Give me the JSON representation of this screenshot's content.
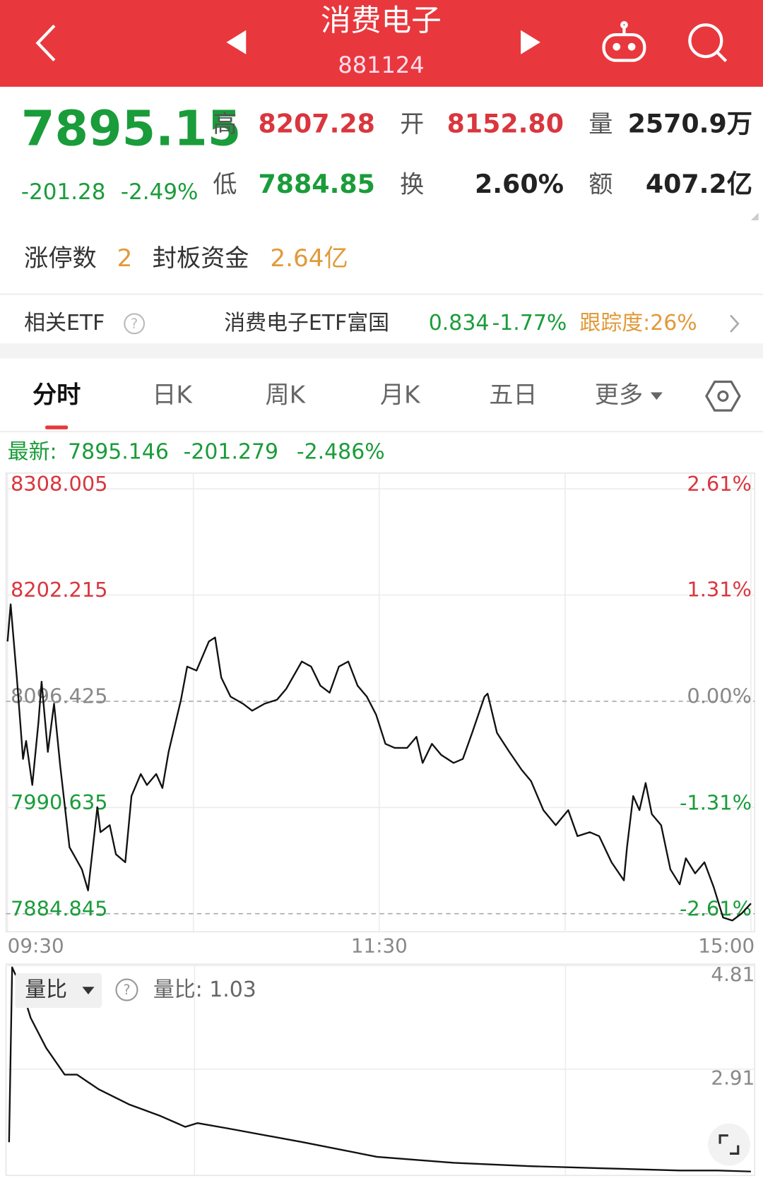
{
  "header": {
    "title": "消费电子",
    "code": "881124"
  },
  "quote": {
    "price": "7895.15",
    "change": "-201.28",
    "change_pct": "-2.49%",
    "stats": [
      {
        "label": "高",
        "value": "8207.28"
      },
      {
        "label": "开",
        "value": "8152.80"
      },
      {
        "label": "量",
        "value": "2570.9万"
      },
      {
        "label": "低",
        "value": "7884.85"
      },
      {
        "label": "换",
        "value": "2.60%"
      },
      {
        "label": "额",
        "value": "407.2亿"
      }
    ]
  },
  "limit_up": {
    "label": "涨停数",
    "count": "2",
    "fund_label": "封板资金",
    "fund": "2.64亿"
  },
  "etf": {
    "label": "相关ETF",
    "name": "消费电子ETF富国",
    "price": "0.834",
    "change": "-1.77%",
    "tracking": "跟踪度:26%"
  },
  "tabs": [
    "分时",
    "日K",
    "周K",
    "月K",
    "五日",
    "更多"
  ],
  "latest": {
    "label": "最新:",
    "price": "7895.146",
    "change": "-201.279",
    "change_pct": "-2.486%"
  },
  "chart_data": [
    {
      "type": "line",
      "color": "#111111",
      "up_color": "#d9363e",
      "down_color": "#1a9c3a",
      "flat_color": "#888888",
      "x": [
        0,
        1,
        3,
        5,
        6,
        8,
        10,
        11,
        13,
        15,
        17,
        20,
        22,
        24,
        26,
        29,
        30,
        33,
        35,
        38,
        40,
        43,
        45,
        48,
        50,
        52,
        56,
        58,
        61,
        65,
        67,
        69,
        72,
        76,
        79,
        83,
        87,
        90,
        95,
        98,
        101,
        104,
        107,
        110,
        113,
        116,
        119,
        122,
        125,
        129,
        132,
        134,
        137,
        140,
        144,
        147,
        150,
        154,
        155,
        158,
        162,
        166,
        169,
        173,
        177,
        181,
        184,
        188,
        191,
        195,
        199,
        200,
        202,
        204,
        206,
        208,
        211,
        214,
        217,
        219,
        222,
        225,
        228,
        231,
        234,
        237,
        240
      ],
      "values": [
        8156,
        8193,
        8120,
        8039,
        8057,
        8013,
        8076,
        8116,
        8046,
        8094,
        8032,
        7951,
        7940,
        7929,
        7908,
        7991,
        7966,
        7973,
        7944,
        7936,
        8002,
        8024,
        8013,
        8024,
        8010,
        8046,
        8098,
        8131,
        8127,
        8156,
        8160,
        8120,
        8101,
        8094,
        8087,
        8094,
        8098,
        8109,
        8136,
        8131,
        8112,
        8105,
        8131,
        8136,
        8112,
        8101,
        8083,
        8054,
        8050,
        8050,
        8061,
        8035,
        8054,
        8043,
        8035,
        8039,
        8065,
        8101,
        8104,
        8065,
        8046,
        8028,
        8017,
        7988,
        7973,
        7988,
        7962,
        7966,
        7962,
        7936,
        7918,
        7951,
        8002,
        7988,
        8015,
        7984,
        7973,
        7929,
        7914,
        7940,
        7925,
        7936,
        7911,
        7881,
        7878,
        7885,
        7895
      ],
      "xlim": [
        0,
        240
      ],
      "xticks": [
        {
          "value": 0,
          "label": "09:30"
        },
        {
          "value": 120,
          "label": "11:30"
        },
        {
          "value": 240,
          "label": "15:00"
        }
      ],
      "ylim": [
        7884.845,
        8308.005
      ],
      "yticks": [
        8308.005,
        8202.215,
        8096.425,
        7990.635,
        7884.845
      ],
      "y2lim": [
        -2.61,
        2.61
      ],
      "y2ticks": [
        {
          "value": 2.61,
          "label": "2.61%"
        },
        {
          "value": 1.31,
          "label": "1.31%"
        },
        {
          "value": 0,
          "label": "0.00%"
        },
        {
          "value": -1.31,
          "label": "-1.31%"
        },
        {
          "value": -2.61,
          "label": "-2.61%"
        }
      ],
      "grid": true
    },
    {
      "type": "line",
      "title": "量比",
      "annotation": "量比: 1.03",
      "color": "#111111",
      "x": [
        0,
        1,
        4,
        7,
        12,
        18,
        22,
        29,
        39,
        49,
        57,
        61,
        71,
        95,
        119,
        144,
        168,
        192,
        217,
        229,
        240
      ],
      "values": [
        1.57,
        4.78,
        4.4,
        3.85,
        3.3,
        2.81,
        2.81,
        2.54,
        2.26,
        2.05,
        1.85,
        1.92,
        1.82,
        1.57,
        1.3,
        1.19,
        1.13,
        1.09,
        1.05,
        1.05,
        1.03
      ],
      "xlim": [
        0,
        240
      ],
      "ylim": [
        1.0,
        4.81
      ],
      "yticks": [
        4.81,
        2.91
      ],
      "grid": true
    }
  ]
}
